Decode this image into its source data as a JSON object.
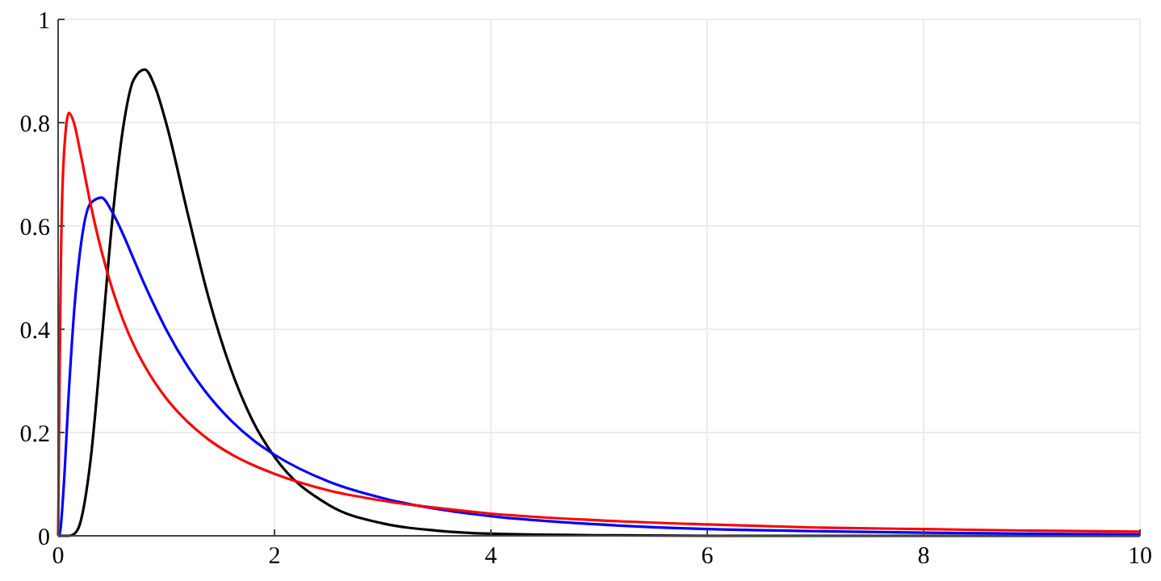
{
  "chart_data": {
    "type": "line",
    "x": [
      0,
      0.005,
      0.01,
      0.02,
      0.05,
      0.1,
      0.15,
      0.2,
      0.3,
      0.4,
      0.5,
      0.6,
      0.7,
      0.8,
      0.9,
      1,
      1.2,
      1.4,
      1.6,
      1.8,
      2,
      2.5,
      3,
      3.5,
      4,
      5,
      6,
      7,
      8,
      9,
      10
    ],
    "series": [
      {
        "color": "#000000",
        "values": [
          0,
          0,
          0,
          0,
          0,
          0,
          0.004,
          0.022,
          0.147,
          0.372,
          0.61,
          0.789,
          0.884,
          0.903,
          0.867,
          0.798,
          0.622,
          0.454,
          0.321,
          0.222,
          0.153,
          0.06,
          0.024,
          0.01,
          0.004,
          0.001,
          0,
          0,
          0,
          0,
          0
        ]
      },
      {
        "color": "#0000ff",
        "values": [
          0,
          0,
          0.001,
          0.01,
          0.09,
          0.282,
          0.44,
          0.546,
          0.644,
          0.655,
          0.627,
          0.584,
          0.535,
          0.486,
          0.441,
          0.399,
          0.327,
          0.269,
          0.223,
          0.186,
          0.157,
          0.105,
          0.073,
          0.052,
          0.038,
          0.022,
          0.013,
          0.009,
          0.006,
          0.004,
          0.003
        ]
      },
      {
        "color": "#ff0000",
        "values": [
          0,
          0.104,
          0.239,
          0.443,
          0.724,
          0.819,
          0.797,
          0.748,
          0.642,
          0.552,
          0.478,
          0.418,
          0.369,
          0.329,
          0.295,
          0.266,
          0.22,
          0.185,
          0.158,
          0.137,
          0.12,
          0.088,
          0.068,
          0.054,
          0.043,
          0.03,
          0.022,
          0.016,
          0.013,
          0.01,
          0.008
        ]
      }
    ],
    "xlim": [
      0,
      10
    ],
    "xticks": [
      0,
      2,
      4,
      6,
      8,
      10
    ],
    "ylim": [
      0,
      1
    ],
    "yticks": [
      0,
      0.2,
      0.4,
      0.6,
      0.8,
      1
    ],
    "grid": true,
    "marker": "none",
    "line_style": "solid"
  }
}
